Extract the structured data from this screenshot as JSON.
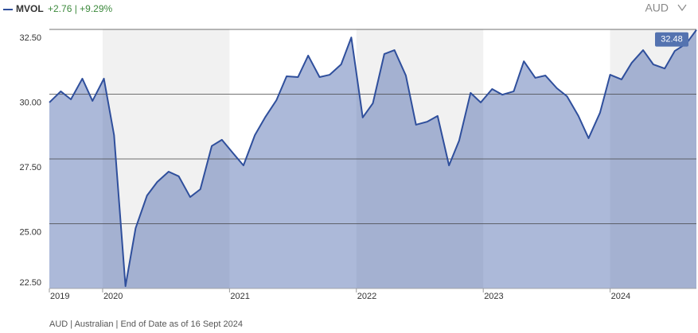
{
  "chart_data": {
    "type": "area",
    "series": [
      {
        "name": "MVOL",
        "color": "#2f4f9c",
        "values": [
          29.68,
          30.11,
          29.8,
          30.6,
          29.74,
          30.6,
          28.42,
          22.59,
          24.83,
          26.09,
          26.61,
          27.01,
          26.83,
          26.03,
          26.33,
          28.0,
          28.24,
          27.71,
          27.25,
          28.42,
          29.1,
          29.77,
          30.69,
          30.66,
          31.49,
          30.66,
          30.75,
          31.15,
          32.19,
          29.1,
          29.65,
          31.55,
          31.7,
          30.72,
          28.82,
          28.94,
          29.16,
          27.25,
          28.21,
          30.05,
          29.68,
          30.2,
          29.98,
          30.11,
          31.27,
          30.63,
          30.72,
          30.23,
          29.92,
          29.16,
          28.3,
          29.28,
          30.75,
          30.57,
          31.21,
          31.7,
          31.15,
          30.99,
          31.67,
          31.95,
          32.48
        ]
      }
    ],
    "x": [
      2019.58,
      2019.67,
      2019.75,
      2019.84,
      2019.92,
      2020.01,
      2020.09,
      2020.18,
      2020.26,
      2020.35,
      2020.43,
      2020.52,
      2020.6,
      2020.69,
      2020.77,
      2020.86,
      2020.94,
      2021.03,
      2021.11,
      2021.2,
      2021.28,
      2021.37,
      2021.45,
      2021.54,
      2021.62,
      2021.71,
      2021.79,
      2021.88,
      2021.96,
      2022.05,
      2022.13,
      2022.22,
      2022.3,
      2022.39,
      2022.47,
      2022.56,
      2022.64,
      2022.73,
      2022.81,
      2022.9,
      2022.98,
      2023.07,
      2023.15,
      2023.24,
      2023.32,
      2023.41,
      2023.49,
      2023.58,
      2023.66,
      2023.75,
      2023.83,
      2023.92,
      2024.0,
      2024.09,
      2024.17,
      2024.26,
      2024.34,
      2024.43,
      2024.51,
      2024.6,
      2024.68
    ],
    "xlim": [
      2019.58,
      2024.68
    ],
    "xticks": [
      2019,
      2020,
      2021,
      2022,
      2023,
      2024
    ],
    "ylim": [
      22.5,
      32.5
    ],
    "yticks": [
      {
        "value": 22.5,
        "label": "22.50"
      },
      {
        "value": 25,
        "label": "25.00"
      },
      {
        "value": 27.5,
        "label": "27.50"
      },
      {
        "value": 30,
        "label": "30.00"
      },
      {
        "value": 32.5,
        "label": "32.50"
      }
    ],
    "grid": true,
    "change_text": "+2.76 | +9.29%",
    "currency": "AUD",
    "footnote": "AUD | Australian | End of Date as of 16 Sept 2024"
  }
}
